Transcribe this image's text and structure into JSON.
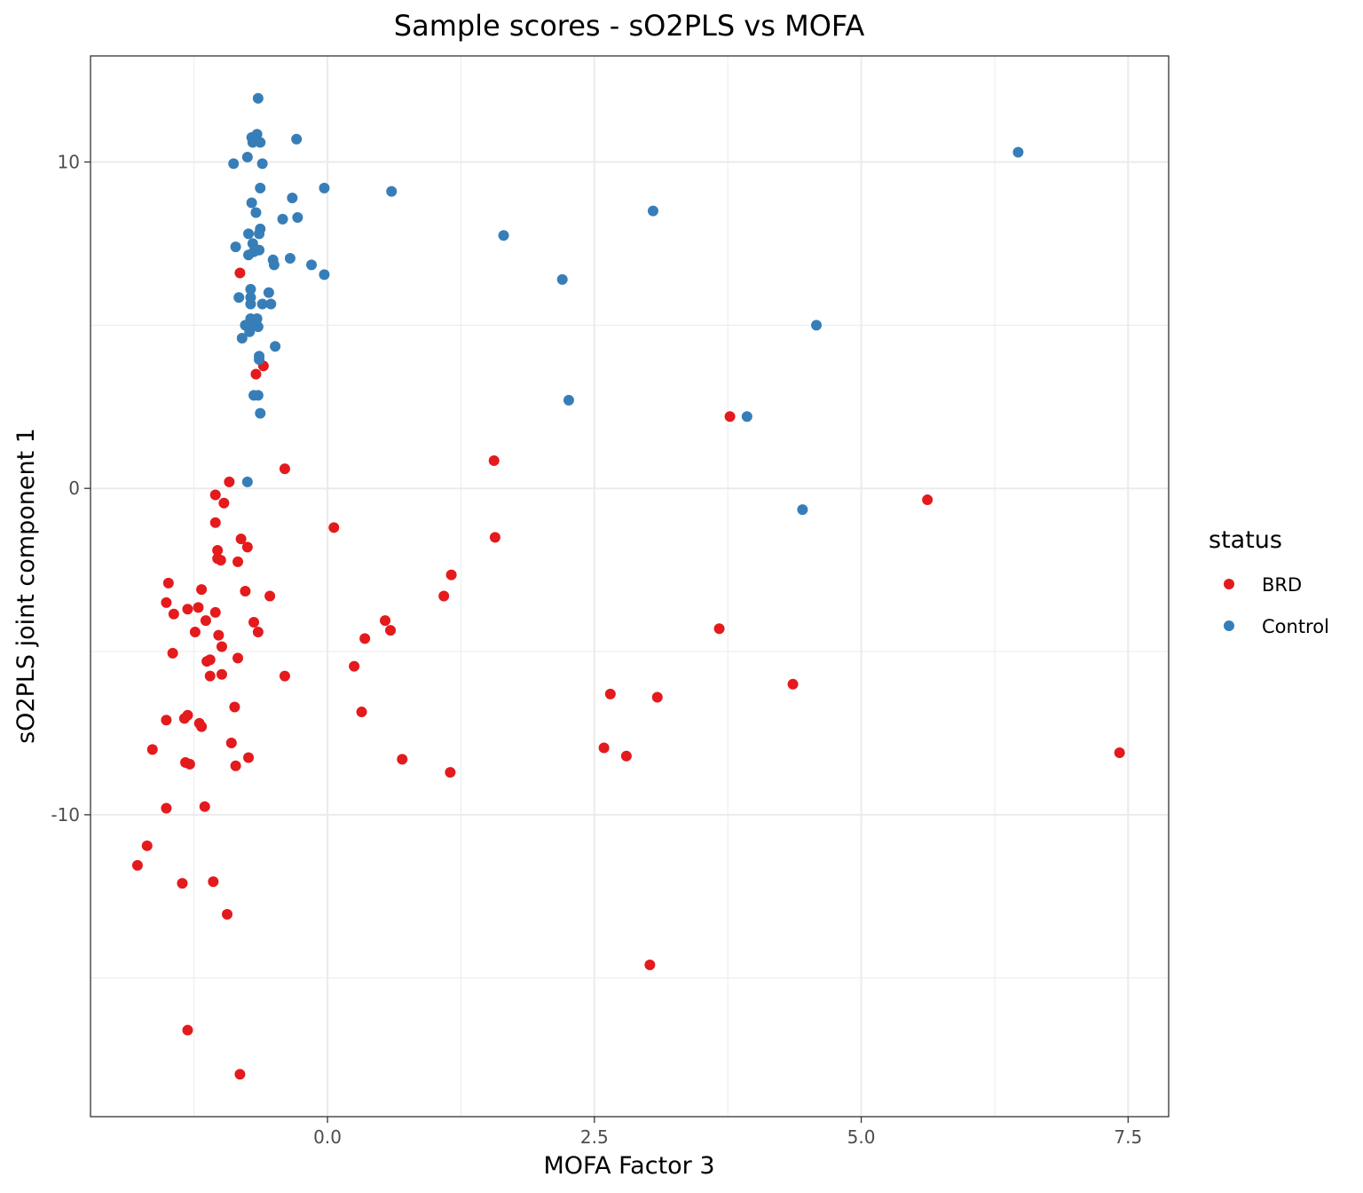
{
  "chart_data": {
    "type": "scatter",
    "title": "Sample scores - sO2PLS vs MOFA",
    "xlabel": "MOFA Factor 3",
    "ylabel": "sO2PLS joint component 1",
    "xlim": [
      -2.22,
      7.88
    ],
    "ylim": [
      -19.25,
      13.25
    ],
    "x_ticks": [
      0.0,
      2.5,
      5.0,
      7.5
    ],
    "x_tick_labels": [
      "0.0",
      "2.5",
      "5.0",
      "7.5"
    ],
    "y_ticks": [
      -10,
      0,
      10
    ],
    "y_tick_labels": [
      "-10",
      "0",
      "10"
    ],
    "grid": true,
    "legend_title": "status",
    "legend_position": "right",
    "series": [
      {
        "name": "BRD",
        "color": "#E41A1C",
        "points": [
          [
            -0.82,
            6.6
          ],
          [
            -0.67,
            3.5
          ],
          [
            -0.6,
            3.75
          ],
          [
            -0.92,
            0.2
          ],
          [
            -0.4,
            0.6
          ],
          [
            -1.05,
            -0.2
          ],
          [
            -0.97,
            -0.45
          ],
          [
            -1.05,
            -1.05
          ],
          [
            0.06,
            -1.2
          ],
          [
            -0.81,
            -1.55
          ],
          [
            -0.75,
            -1.8
          ],
          [
            -1.03,
            -1.9
          ],
          [
            -1.03,
            -2.15
          ],
          [
            -1.0,
            -2.2
          ],
          [
            -0.84,
            -2.25
          ],
          [
            -1.49,
            -2.9
          ],
          [
            -1.18,
            -3.1
          ],
          [
            -0.77,
            -3.15
          ],
          [
            -0.54,
            -3.3
          ],
          [
            -1.51,
            -3.5
          ],
          [
            -1.31,
            -3.7
          ],
          [
            -1.21,
            -3.65
          ],
          [
            -1.44,
            -3.85
          ],
          [
            -1.05,
            -3.8
          ],
          [
            -1.14,
            -4.05
          ],
          [
            -0.69,
            -4.1
          ],
          [
            -1.24,
            -4.4
          ],
          [
            -1.02,
            -4.5
          ],
          [
            -0.65,
            -4.4
          ],
          [
            -0.99,
            -4.85
          ],
          [
            -1.45,
            -5.05
          ],
          [
            -1.13,
            -5.3
          ],
          [
            -1.1,
            -5.25
          ],
          [
            -0.84,
            -5.2
          ],
          [
            -1.1,
            -5.75
          ],
          [
            -0.99,
            -5.7
          ],
          [
            -0.4,
            -5.75
          ],
          [
            -0.87,
            -6.7
          ],
          [
            -1.51,
            -7.1
          ],
          [
            -1.34,
            -7.05
          ],
          [
            -1.31,
            -6.95
          ],
          [
            -1.2,
            -7.2
          ],
          [
            -1.18,
            -7.3
          ],
          [
            -0.9,
            -7.8
          ],
          [
            -1.64,
            -8.0
          ],
          [
            -0.74,
            -8.25
          ],
          [
            -1.29,
            -8.45
          ],
          [
            -1.33,
            -8.4
          ],
          [
            -0.86,
            -8.5
          ],
          [
            -1.51,
            -9.8
          ],
          [
            -1.15,
            -9.75
          ],
          [
            -1.69,
            -10.95
          ],
          [
            -1.78,
            -11.55
          ],
          [
            -1.36,
            -12.1
          ],
          [
            -1.07,
            -12.05
          ],
          [
            -0.94,
            -13.05
          ],
          [
            -1.31,
            -16.6
          ],
          [
            -0.82,
            -17.95
          ],
          [
            1.56,
            0.85
          ],
          [
            1.57,
            -1.5
          ],
          [
            1.16,
            -2.65
          ],
          [
            1.09,
            -3.3
          ],
          [
            0.54,
            -4.05
          ],
          [
            0.59,
            -4.35
          ],
          [
            0.35,
            -4.6
          ],
          [
            0.25,
            -5.45
          ],
          [
            0.32,
            -6.85
          ],
          [
            0.7,
            -8.3
          ],
          [
            1.15,
            -8.7
          ],
          [
            2.65,
            -6.3
          ],
          [
            3.09,
            -6.4
          ],
          [
            2.59,
            -7.95
          ],
          [
            2.8,
            -8.2
          ],
          [
            3.02,
            -14.6
          ],
          [
            3.67,
            -4.3
          ],
          [
            3.77,
            2.2
          ],
          [
            4.36,
            -6.0
          ],
          [
            5.62,
            -0.35
          ],
          [
            7.42,
            -8.1
          ]
        ]
      },
      {
        "name": "Control",
        "color": "#377EB8",
        "points": [
          [
            -0.65,
            11.95
          ],
          [
            -0.66,
            10.85
          ],
          [
            -0.71,
            10.75
          ],
          [
            -0.63,
            10.6
          ],
          [
            -0.7,
            10.6
          ],
          [
            -0.29,
            10.7
          ],
          [
            -0.75,
            10.15
          ],
          [
            -0.88,
            9.95
          ],
          [
            -0.61,
            9.95
          ],
          [
            -0.03,
            9.2
          ],
          [
            -0.63,
            9.2
          ],
          [
            -0.33,
            8.9
          ],
          [
            0.6,
            9.1
          ],
          [
            -0.71,
            8.75
          ],
          [
            -0.67,
            8.45
          ],
          [
            -0.42,
            8.25
          ],
          [
            -0.28,
            8.3
          ],
          [
            -0.63,
            7.95
          ],
          [
            -0.64,
            7.8
          ],
          [
            -0.74,
            7.8
          ],
          [
            -0.86,
            7.4
          ],
          [
            -0.7,
            7.5
          ],
          [
            -0.69,
            7.25
          ],
          [
            -0.64,
            7.3
          ],
          [
            -0.74,
            7.15
          ],
          [
            -0.35,
            7.05
          ],
          [
            -0.51,
            7.0
          ],
          [
            -0.5,
            6.85
          ],
          [
            -0.15,
            6.85
          ],
          [
            -0.03,
            6.55
          ],
          [
            -0.72,
            6.1
          ],
          [
            -0.55,
            6.0
          ],
          [
            -0.83,
            5.85
          ],
          [
            -0.72,
            5.85
          ],
          [
            -0.72,
            5.65
          ],
          [
            -0.61,
            5.65
          ],
          [
            -0.53,
            5.65
          ],
          [
            -0.72,
            5.2
          ],
          [
            -0.66,
            5.2
          ],
          [
            -0.77,
            5.0
          ],
          [
            -0.7,
            5.0
          ],
          [
            -0.65,
            4.95
          ],
          [
            -0.73,
            4.8
          ],
          [
            -0.8,
            4.6
          ],
          [
            -0.49,
            4.35
          ],
          [
            -0.64,
            4.05
          ],
          [
            -0.64,
            3.95
          ],
          [
            -0.69,
            2.85
          ],
          [
            -0.65,
            2.85
          ],
          [
            -0.63,
            2.3
          ],
          [
            -0.75,
            0.2
          ],
          [
            1.65,
            7.75
          ],
          [
            2.2,
            6.4
          ],
          [
            2.26,
            2.7
          ],
          [
            3.05,
            8.5
          ],
          [
            3.93,
            2.2
          ],
          [
            4.45,
            -0.65
          ],
          [
            4.58,
            5.0
          ],
          [
            6.47,
            10.3
          ]
        ]
      }
    ]
  }
}
